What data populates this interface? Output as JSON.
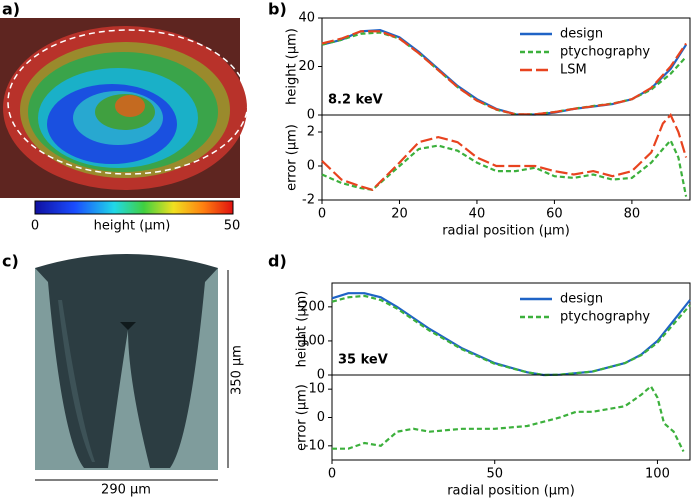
{
  "panel_labels": [
    "a)",
    "b)",
    "c)",
    "d)"
  ],
  "colorbar": {
    "label": "height (µm)",
    "ticks": [
      0,
      50
    ]
  },
  "drawing": {
    "height_label": "350 µm",
    "width_label": "290 µm"
  },
  "chart_data": [
    {
      "type": "line",
      "ylabel": "height (µm)",
      "annotation": "8.2 keV",
      "legend": "upper right",
      "xlim": [
        0,
        95
      ],
      "ylim": [
        0,
        40
      ],
      "yticks": [
        0,
        20,
        40
      ],
      "x": [
        0,
        5,
        10,
        15,
        20,
        25,
        30,
        35,
        40,
        45,
        50,
        55,
        60,
        65,
        70,
        75,
        80,
        85,
        90,
        94
      ],
      "series": [
        {
          "name": "design",
          "color": "#1f63c6",
          "style": "solid",
          "values": [
            29,
            31,
            34.5,
            35,
            32,
            26,
            19,
            12,
            6.5,
            2.5,
            0.3,
            0.2,
            1,
            2.5,
            3.5,
            4.5,
            6.5,
            11,
            19,
            29
          ]
        },
        {
          "name": "ptychography",
          "color": "#3cb03c",
          "style": "dashed",
          "values": [
            29,
            31,
            33.5,
            34,
            31.5,
            25.5,
            18.5,
            11.5,
            6,
            2.2,
            0.3,
            0.3,
            1.2,
            2.6,
            3.7,
            4.7,
            6.5,
            10.5,
            17,
            24
          ]
        },
        {
          "name": "LSM",
          "color": "#e8431f",
          "style": "long-dashed",
          "values": [
            29.5,
            31.5,
            34.5,
            34.5,
            31.5,
            25.5,
            18.5,
            11.5,
            6,
            2.3,
            0.3,
            0.3,
            1.2,
            2.5,
            3.6,
            4.6,
            6.5,
            11.2,
            20,
            29.5
          ]
        }
      ]
    },
    {
      "type": "line",
      "ylabel": "error (µm)",
      "xlabel": "radial position (µm)",
      "xlim": [
        0,
        95
      ],
      "xticks": [
        0,
        20,
        40,
        60,
        80
      ],
      "ylim": [
        -2,
        3
      ],
      "yticks": [
        -2,
        0,
        2
      ],
      "x": [
        0,
        5,
        10,
        13,
        20,
        25,
        30,
        35,
        40,
        45,
        50,
        55,
        60,
        65,
        70,
        75,
        80,
        85,
        88,
        90,
        92,
        94
      ],
      "series": [
        {
          "color": "#3cb03c",
          "style": "dashed",
          "values": [
            -0.5,
            -1,
            -1.3,
            -1.4,
            0,
            1,
            1.2,
            0.9,
            0.2,
            -0.3,
            -0.3,
            -0.1,
            -0.6,
            -0.7,
            -0.5,
            -0.8,
            -0.7,
            0.2,
            1,
            1.5,
            0.5,
            -1.8
          ]
        },
        {
          "color": "#e8431f",
          "style": "long-dashed",
          "values": [
            0.3,
            -0.8,
            -1.2,
            -1.4,
            0.2,
            1.4,
            1.7,
            1.4,
            0.5,
            0,
            0,
            0,
            -0.3,
            -0.5,
            -0.3,
            -0.6,
            -0.3,
            0.8,
            2.5,
            3,
            2,
            0.5
          ]
        }
      ]
    },
    {
      "type": "line",
      "ylabel": "height (µm)",
      "annotation": "35 keV",
      "legend": "upper right",
      "xlim": [
        0,
        110
      ],
      "ylim": [
        0,
        270
      ],
      "yticks": [
        0,
        100,
        200
      ],
      "x": [
        0,
        5,
        10,
        15,
        20,
        30,
        40,
        50,
        60,
        65,
        70,
        80,
        90,
        95,
        100,
        105,
        110
      ],
      "series": [
        {
          "name": "design",
          "color": "#1f63c6",
          "style": "solid",
          "values": [
            225,
            240,
            240,
            228,
            200,
            135,
            78,
            35,
            8,
            0,
            1,
            10,
            35,
            60,
            100,
            160,
            220
          ]
        },
        {
          "name": "ptychography",
          "color": "#3cb03c",
          "style": "dashed",
          "values": [
            215,
            228,
            232,
            220,
            195,
            130,
            75,
            33,
            8,
            0,
            1,
            10,
            35,
            58,
            95,
            150,
            205
          ]
        }
      ]
    },
    {
      "type": "line",
      "ylabel": "error (µm)",
      "xlabel": "radial position (µm)",
      "xlim": [
        0,
        110
      ],
      "xticks": [
        0,
        50,
        100
      ],
      "ylim": [
        -15,
        15
      ],
      "yticks": [
        -10,
        0,
        10
      ],
      "x": [
        0,
        5,
        10,
        15,
        20,
        25,
        30,
        40,
        50,
        60,
        70,
        75,
        80,
        90,
        95,
        98,
        100,
        102,
        105,
        108
      ],
      "series": [
        {
          "color": "#3cb03c",
          "style": "dashed",
          "values": [
            -11,
            -11,
            -9,
            -10,
            -5,
            -4,
            -5,
            -4,
            -4,
            -3,
            0,
            2,
            2,
            4,
            8,
            11,
            7,
            -2,
            -5,
            -12
          ]
        }
      ]
    }
  ]
}
